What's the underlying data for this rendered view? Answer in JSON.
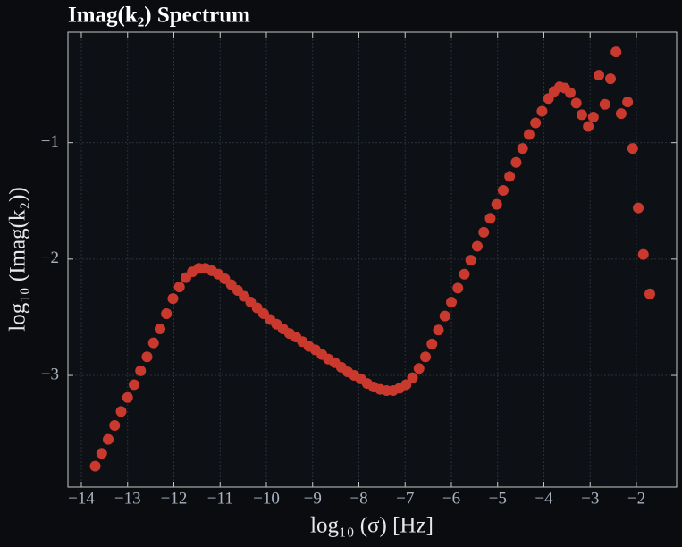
{
  "chart_data": {
    "type": "scatter",
    "title": "Imag(k₂) Spectrum",
    "x_label": "log₁₀ (σ) [Hz]",
    "y_label": "log₁₀ (Imag(k₂))",
    "color": "#c9392e",
    "grid": true,
    "xlim": [
      -14.29,
      -1.13
    ],
    "ylim": [
      -3.96,
      -0.05
    ],
    "xticks": [
      {
        "value": -14,
        "label": "−14"
      },
      {
        "value": -13,
        "label": "−13"
      },
      {
        "value": -12,
        "label": "−12"
      },
      {
        "value": -11,
        "label": "−11"
      },
      {
        "value": -10,
        "label": "−10"
      },
      {
        "value": -9,
        "label": "−9"
      },
      {
        "value": -8,
        "label": "−8"
      },
      {
        "value": -7,
        "label": "−7"
      },
      {
        "value": -6,
        "label": "−6"
      },
      {
        "value": -5,
        "label": "−5"
      },
      {
        "value": -4,
        "label": "−4"
      },
      {
        "value": -3,
        "label": "−3"
      },
      {
        "value": -2,
        "label": "−2"
      }
    ],
    "yticks": [
      {
        "value": -1,
        "label": "−1"
      },
      {
        "value": -2,
        "label": "−2"
      },
      {
        "value": -3,
        "label": "−3"
      }
    ],
    "x": [
      -13.7,
      -13.56,
      -13.42,
      -13.28,
      -13.14,
      -13.0,
      -12.86,
      -12.72,
      -12.58,
      -12.44,
      -12.3,
      -12.16,
      -12.02,
      -11.88,
      -11.74,
      -11.6,
      -11.46,
      -11.32,
      -11.18,
      -11.04,
      -10.9,
      -10.76,
      -10.62,
      -10.48,
      -10.34,
      -10.2,
      -10.06,
      -9.92,
      -9.78,
      -9.64,
      -9.5,
      -9.36,
      -9.22,
      -9.08,
      -8.94,
      -8.8,
      -8.66,
      -8.52,
      -8.38,
      -8.24,
      -8.1,
      -7.96,
      -7.82,
      -7.68,
      -7.54,
      -7.4,
      -7.26,
      -7.12,
      -6.98,
      -6.84,
      -6.7,
      -6.56,
      -6.42,
      -6.28,
      -6.14,
      -6.0,
      -5.86,
      -5.72,
      -5.58,
      -5.44,
      -5.3,
      -5.16,
      -5.02,
      -4.88,
      -4.74,
      -4.6,
      -4.46,
      -4.32,
      -4.18,
      -4.04,
      -3.9,
      -3.78,
      -3.66,
      -3.55,
      -3.43,
      -3.3,
      -3.18,
      -3.04,
      -2.93,
      -2.81,
      -2.68,
      -2.56,
      -2.44,
      -2.33,
      -2.19,
      -2.08,
      -1.96,
      -1.85,
      -1.71
    ],
    "values": [
      -3.78,
      -3.67,
      -3.55,
      -3.43,
      -3.31,
      -3.19,
      -3.08,
      -2.96,
      -2.84,
      -2.72,
      -2.6,
      -2.47,
      -2.34,
      -2.24,
      -2.16,
      -2.11,
      -2.08,
      -2.08,
      -2.1,
      -2.13,
      -2.17,
      -2.22,
      -2.27,
      -2.32,
      -2.37,
      -2.42,
      -2.47,
      -2.52,
      -2.56,
      -2.6,
      -2.64,
      -2.67,
      -2.71,
      -2.75,
      -2.78,
      -2.82,
      -2.86,
      -2.89,
      -2.93,
      -2.97,
      -3.0,
      -3.03,
      -3.07,
      -3.1,
      -3.12,
      -3.13,
      -3.13,
      -3.11,
      -3.08,
      -3.02,
      -2.94,
      -2.84,
      -2.73,
      -2.61,
      -2.49,
      -2.37,
      -2.25,
      -2.13,
      -2.01,
      -1.89,
      -1.77,
      -1.65,
      -1.53,
      -1.41,
      -1.29,
      -1.17,
      -1.05,
      -0.93,
      -0.83,
      -0.73,
      -0.62,
      -0.56,
      -0.52,
      -0.53,
      -0.57,
      -0.66,
      -0.76,
      -0.86,
      -0.78,
      -0.42,
      -0.67,
      -0.45,
      -0.22,
      -0.75,
      -0.65,
      -1.05,
      -1.56,
      -1.96,
      -2.3
    ]
  }
}
